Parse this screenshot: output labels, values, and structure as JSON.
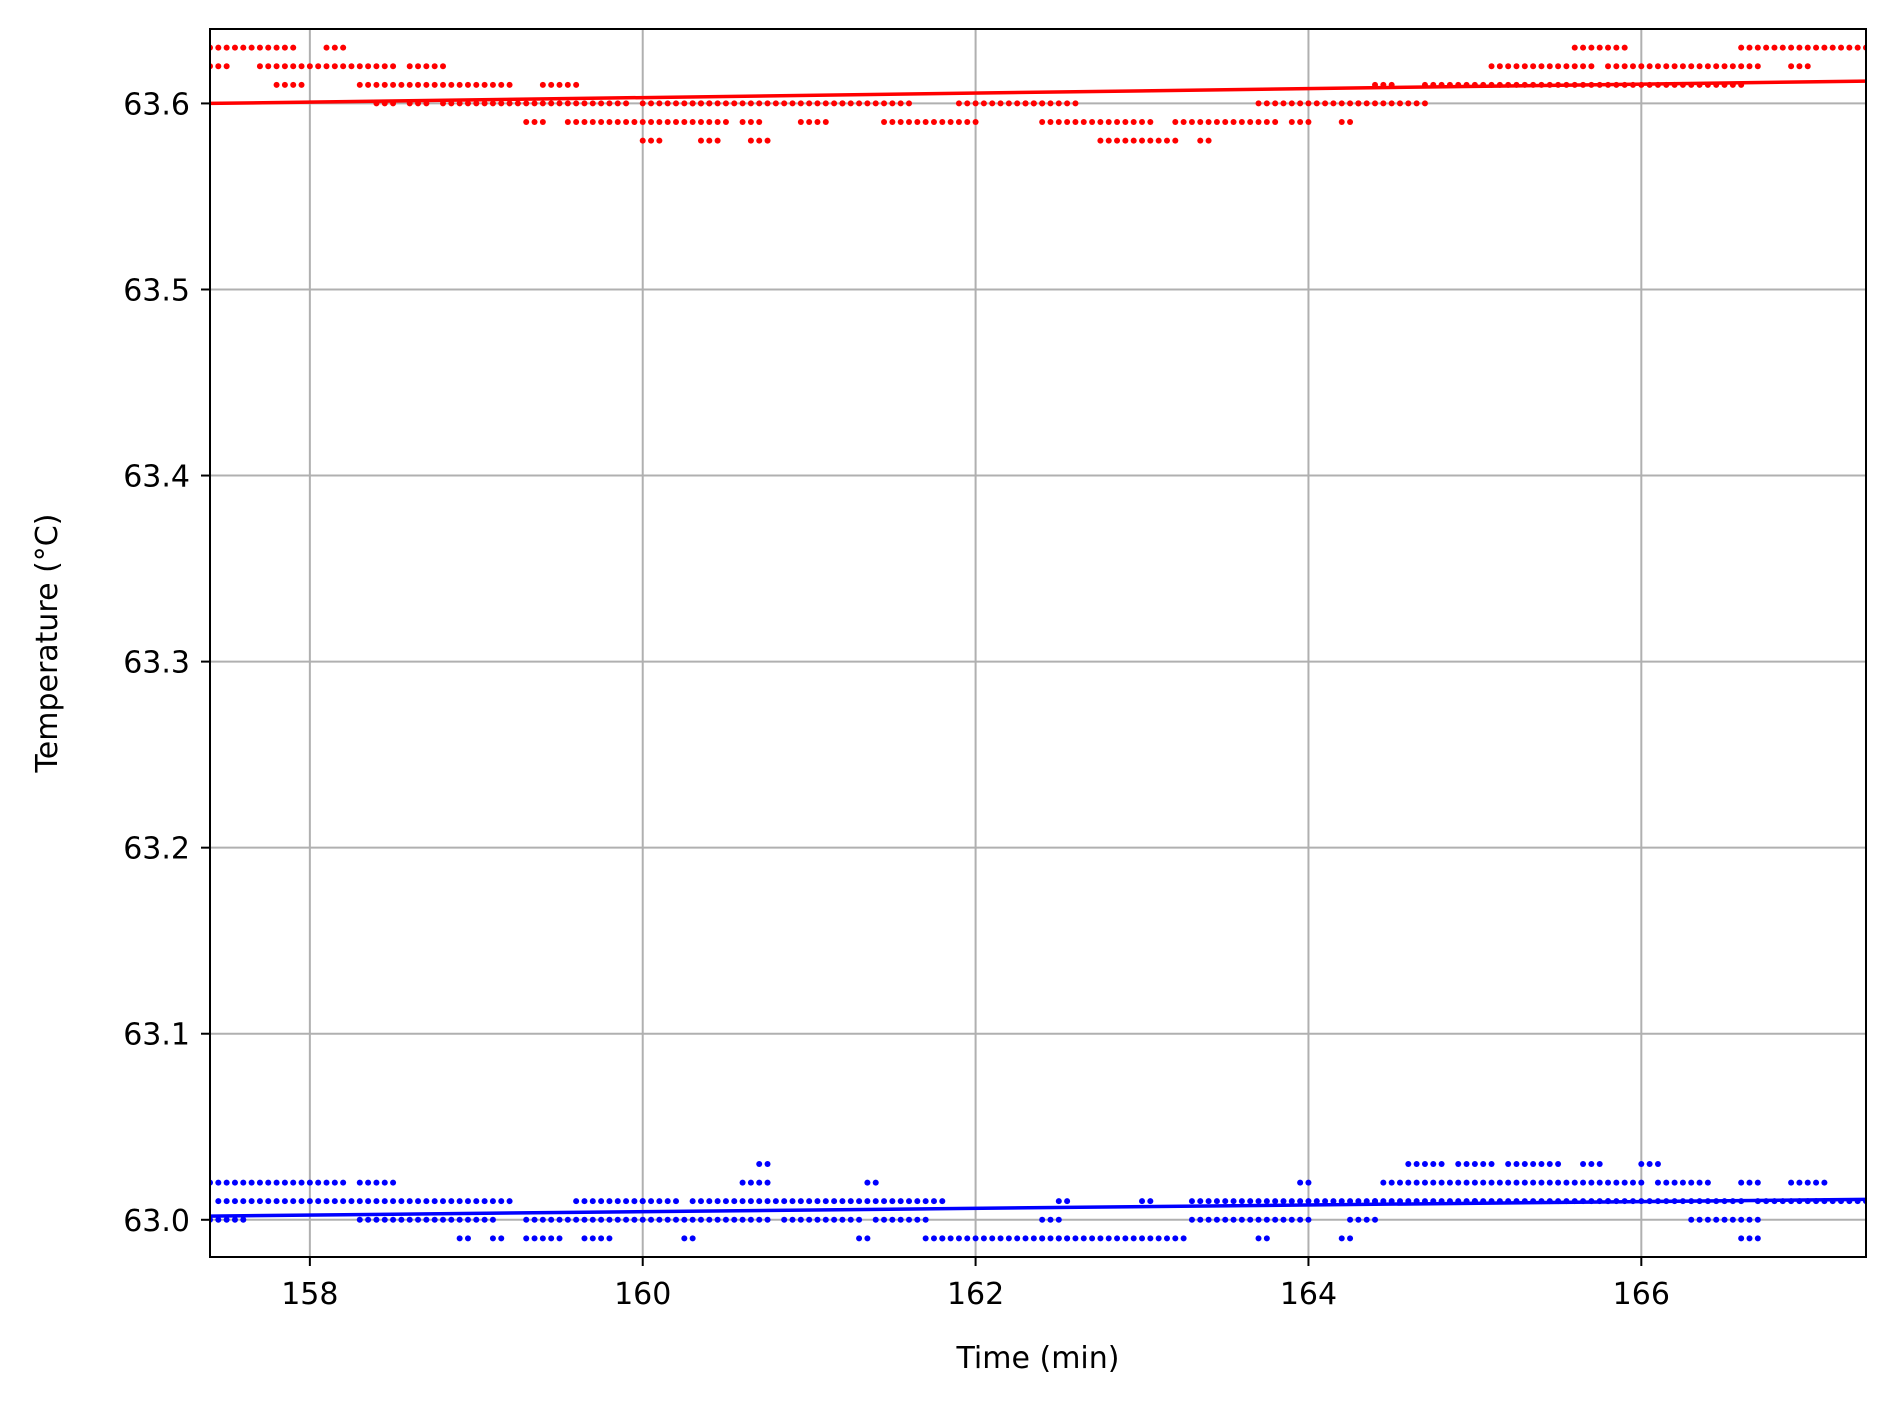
{
  "chart_data": {
    "type": "scatter",
    "xlabel": "Time (min)",
    "ylabel": "Temperature (°C)",
    "xlim": [
      157.4,
      167.35
    ],
    "ylim": [
      62.98,
      63.64
    ],
    "x_ticks": [
      158,
      160,
      162,
      164,
      166
    ],
    "y_ticks": [
      63.0,
      63.1,
      63.2,
      63.3,
      63.4,
      63.5,
      63.6
    ],
    "grid": true,
    "series": [
      {
        "color": "#ff0000",
        "marker": "dot",
        "trend": {
          "x": [
            157.4,
            167.35
          ],
          "y": [
            63.6,
            63.612
          ]
        },
        "clusters": [
          {
            "y": 63.63,
            "x": [
              [
                157.4,
                157.9
              ],
              [
                158.1,
                158.2
              ],
              [
                165.6,
                165.9
              ],
              [
                166.6,
                167.35
              ]
            ]
          },
          {
            "y": 63.62,
            "x": [
              [
                157.4,
                157.5
              ],
              [
                157.7,
                157.8
              ],
              [
                157.85,
                158.25
              ],
              [
                158.3,
                158.5
              ],
              [
                158.6,
                158.8
              ],
              [
                165.1,
                165.7
              ],
              [
                165.8,
                166.7
              ],
              [
                166.9,
                167.0
              ]
            ]
          },
          {
            "y": 63.61,
            "x": [
              [
                157.8,
                157.95
              ],
              [
                158.3,
                158.8
              ],
              [
                158.85,
                159.2
              ],
              [
                159.4,
                159.6
              ],
              [
                164.4,
                164.5
              ],
              [
                164.7,
                166.0
              ],
              [
                166.05,
                166.6
              ]
            ]
          },
          {
            "y": 63.6,
            "x": [
              [
                158.4,
                158.5
              ],
              [
                158.6,
                158.7
              ],
              [
                158.8,
                159.9
              ],
              [
                160.0,
                160.4
              ],
              [
                160.3,
                161.2
              ],
              [
                161.2,
                161.6
              ],
              [
                161.9,
                162.4
              ],
              [
                162.3,
                162.6
              ],
              [
                163.7,
                164.3
              ],
              [
                164.3,
                164.7
              ]
            ]
          },
          {
            "y": 63.59,
            "x": [
              [
                159.3,
                159.4
              ],
              [
                159.55,
                160.05
              ],
              [
                160.1,
                160.5
              ],
              [
                160.6,
                160.7
              ],
              [
                160.95,
                161.1
              ],
              [
                161.45,
                161.75
              ],
              [
                161.8,
                162.0
              ],
              [
                162.4,
                162.8
              ],
              [
                162.85,
                163.05
              ],
              [
                163.2,
                163.8
              ],
              [
                163.9,
                164.0
              ],
              [
                164.2,
                164.25
              ]
            ]
          },
          {
            "y": 63.58,
            "x": [
              [
                160.0,
                160.1
              ],
              [
                160.35,
                160.45
              ],
              [
                160.65,
                160.75
              ],
              [
                162.75,
                163.2
              ],
              [
                163.35,
                163.4
              ]
            ]
          }
        ]
      },
      {
        "color": "#0000ff",
        "marker": "dot",
        "trend": {
          "x": [
            157.4,
            167.35
          ],
          "y": [
            63.002,
            63.011
          ]
        },
        "clusters": [
          {
            "y": 63.03,
            "x": [
              [
                160.7,
                160.75
              ],
              [
                164.6,
                164.8
              ],
              [
                164.9,
                165.1
              ],
              [
                165.2,
                165.5
              ],
              [
                165.65,
                165.75
              ],
              [
                166.0,
                166.1
              ]
            ]
          },
          {
            "y": 63.02,
            "x": [
              [
                157.4,
                157.5
              ],
              [
                157.55,
                157.7
              ],
              [
                157.75,
                158.2
              ],
              [
                158.3,
                158.4
              ],
              [
                158.45,
                158.5
              ],
              [
                160.6,
                160.75
              ],
              [
                161.35,
                161.4
              ],
              [
                163.95,
                164.0
              ],
              [
                164.45,
                166.0
              ],
              [
                166.1,
                166.4
              ],
              [
                166.6,
                166.7
              ],
              [
                166.9,
                167.1
              ]
            ]
          },
          {
            "y": 63.01,
            "x": [
              [
                157.45,
                158.9
              ],
              [
                158.95,
                159.2
              ],
              [
                159.6,
                160.0
              ],
              [
                160.0,
                160.2
              ],
              [
                160.3,
                161.45
              ],
              [
                161.5,
                161.8
              ],
              [
                162.5,
                162.55
              ],
              [
                163.0,
                163.05
              ],
              [
                163.3,
                164.4
              ],
              [
                164.4,
                165.0
              ],
              [
                165.0,
                165.8
              ],
              [
                165.8,
                166.6
              ],
              [
                166.7,
                167.35
              ]
            ]
          },
          {
            "y": 63.0,
            "x": [
              [
                157.4,
                157.6
              ],
              [
                158.3,
                158.4
              ],
              [
                158.45,
                159.1
              ],
              [
                159.3,
                159.5
              ],
              [
                159.55,
                159.95
              ],
              [
                160.0,
                160.4
              ],
              [
                160.45,
                160.75
              ],
              [
                160.85,
                161.3
              ],
              [
                161.4,
                161.7
              ],
              [
                162.4,
                162.5
              ],
              [
                163.3,
                163.7
              ],
              [
                163.75,
                164.0
              ],
              [
                164.25,
                164.4
              ],
              [
                166.3,
                166.7
              ]
            ]
          },
          {
            "y": 62.99,
            "x": [
              [
                158.9,
                158.95
              ],
              [
                159.1,
                159.15
              ],
              [
                159.3,
                159.5
              ],
              [
                159.65,
                159.8
              ],
              [
                160.25,
                160.3
              ],
              [
                161.3,
                161.35
              ],
              [
                161.7,
                161.8
              ],
              [
                161.8,
                162.4
              ],
              [
                162.4,
                162.55
              ],
              [
                162.5,
                163.0
              ],
              [
                163.05,
                163.25
              ],
              [
                163.7,
                163.75
              ],
              [
                164.2,
                164.25
              ],
              [
                166.6,
                166.7
              ]
            ]
          }
        ]
      }
    ]
  }
}
